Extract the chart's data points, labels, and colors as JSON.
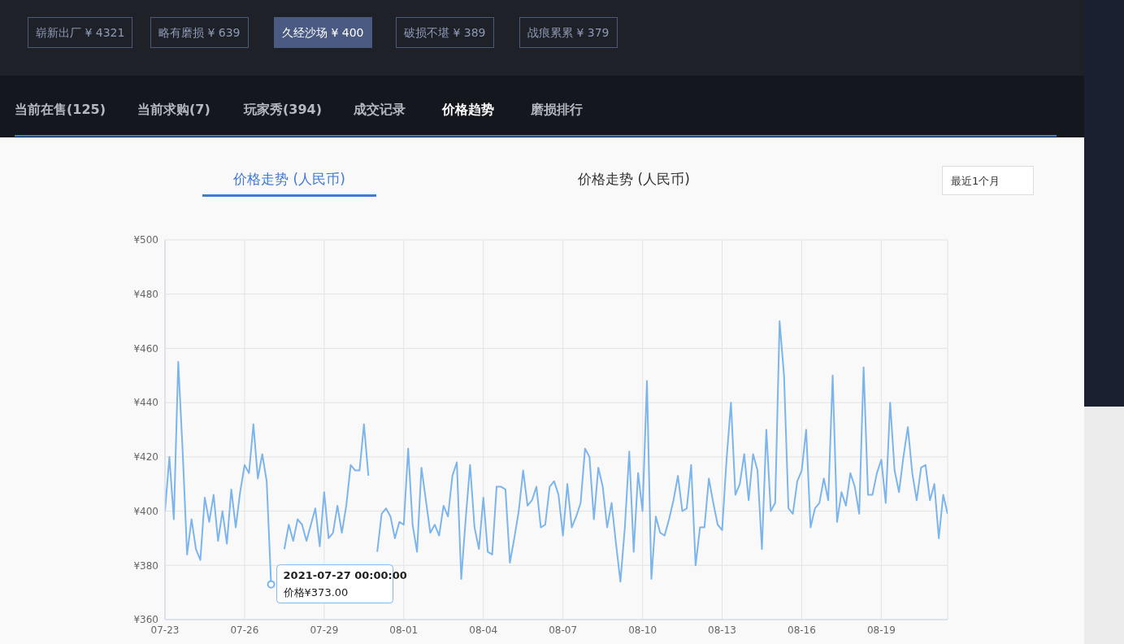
{
  "chart_data": {
    "type": "line",
    "title": "价格走势 (人民币)",
    "annotations": [
      "崭新出厂 ¥ 4321",
      "略有磨损 ¥ 639",
      "久经沙场 ¥ 400",
      "破损不堪 ¥ 389",
      "战痕累累 ¥ 379",
      "当前在售(125)",
      "当前求购(7)",
      "玩家秀(394)",
      "成交记录",
      "价格趋势",
      "磨损排行",
      "价格走势 (人民币)",
      "最近1个月",
      {
        "text": "2021-07-27 00:00:00",
        "x": "2021-07-27T00:00",
        "y": 373
      },
      {
        "text": "价格¥373.00",
        "x": "2021-07-27T00:00",
        "y": 373
      }
    ],
    "x": [
      "2021-07-23T00:00",
      "2021-07-23T04:00",
      "2021-07-23T08:00",
      "2021-07-23T12:00",
      "2021-07-23T16:00",
      "2021-07-23T20:00",
      "2021-07-24T00:00",
      "2021-07-24T04:00",
      "2021-07-24T08:00",
      "2021-07-24T12:00",
      "2021-07-24T16:00",
      "2021-07-24T20:00",
      "2021-07-25T00:00",
      "2021-07-25T04:00",
      "2021-07-25T08:00",
      "2021-07-25T12:00",
      "2021-07-25T16:00",
      "2021-07-25T20:00",
      "2021-07-26T00:00",
      "2021-07-26T04:00",
      "2021-07-26T08:00",
      "2021-07-26T12:00",
      "2021-07-26T16:00",
      "2021-07-26T20:00",
      "2021-07-27T00:00",
      "2021-07-27T04:00",
      "2021-07-27T08:00",
      "2021-07-27T12:00",
      "2021-07-27T16:00",
      "2021-07-27T20:00",
      "2021-07-28T00:00",
      "2021-07-28T04:00",
      "2021-07-28T08:00",
      "2021-07-28T12:00",
      "2021-07-28T16:00",
      "2021-07-28T20:00",
      "2021-07-29T00:00",
      "2021-07-29T04:00",
      "2021-07-29T08:00",
      "2021-07-29T12:00",
      "2021-07-29T16:00",
      "2021-07-29T20:00",
      "2021-07-30T00:00",
      "2021-07-30T04:00",
      "2021-07-30T08:00",
      "2021-07-30T12:00",
      "2021-07-30T16:00",
      "2021-07-30T20:00",
      "2021-07-31T00:00",
      "2021-07-31T04:00",
      "2021-07-31T08:00",
      "2021-07-31T12:00",
      "2021-07-31T16:00",
      "2021-07-31T20:00",
      "2021-08-01T00:00",
      "2021-08-01T04:00",
      "2021-08-01T08:00",
      "2021-08-01T12:00",
      "2021-08-01T16:00",
      "2021-08-01T20:00",
      "2021-08-02T00:00",
      "2021-08-02T04:00",
      "2021-08-02T08:00",
      "2021-08-02T12:00",
      "2021-08-02T16:00",
      "2021-08-02T20:00",
      "2021-08-03T00:00",
      "2021-08-03T04:00",
      "2021-08-03T08:00",
      "2021-08-03T12:00",
      "2021-08-03T16:00",
      "2021-08-03T20:00",
      "2021-08-04T00:00",
      "2021-08-04T04:00",
      "2021-08-04T08:00",
      "2021-08-04T12:00",
      "2021-08-04T16:00",
      "2021-08-04T20:00",
      "2021-08-05T00:00",
      "2021-08-05T04:00",
      "2021-08-05T08:00",
      "2021-08-05T12:00",
      "2021-08-05T16:00",
      "2021-08-05T20:00",
      "2021-08-06T00:00",
      "2021-08-06T04:00",
      "2021-08-06T08:00",
      "2021-08-06T12:00",
      "2021-08-06T16:00",
      "2021-08-06T20:00",
      "2021-08-07T00:00",
      "2021-08-07T04:00",
      "2021-08-07T08:00",
      "2021-08-07T12:00",
      "2021-08-07T16:00",
      "2021-08-07T20:00",
      "2021-08-08T00:00",
      "2021-08-08T04:00",
      "2021-08-08T08:00",
      "2021-08-08T12:00",
      "2021-08-08T16:00",
      "2021-08-08T20:00",
      "2021-08-09T00:00",
      "2021-08-09T04:00",
      "2021-08-09T08:00",
      "2021-08-09T12:00",
      "2021-08-09T16:00",
      "2021-08-09T20:00",
      "2021-08-10T00:00",
      "2021-08-10T04:00",
      "2021-08-10T08:00",
      "2021-08-10T12:00",
      "2021-08-10T16:00",
      "2021-08-10T20:00",
      "2021-08-11T00:00",
      "2021-08-11T04:00",
      "2021-08-11T08:00",
      "2021-08-11T12:00",
      "2021-08-11T16:00",
      "2021-08-11T20:00",
      "2021-08-12T00:00",
      "2021-08-12T04:00",
      "2021-08-12T08:00",
      "2021-08-12T12:00",
      "2021-08-12T16:00",
      "2021-08-12T20:00",
      "2021-08-13T00:00",
      "2021-08-13T04:00",
      "2021-08-13T08:00",
      "2021-08-13T12:00",
      "2021-08-13T16:00",
      "2021-08-13T20:00",
      "2021-08-14T00:00",
      "2021-08-14T04:00",
      "2021-08-14T08:00",
      "2021-08-14T12:00",
      "2021-08-14T16:00",
      "2021-08-14T20:00",
      "2021-08-15T00:00",
      "2021-08-15T04:00",
      "2021-08-15T08:00",
      "2021-08-15T12:00",
      "2021-08-15T16:00",
      "2021-08-15T20:00",
      "2021-08-16T00:00",
      "2021-08-16T04:00",
      "2021-08-16T08:00",
      "2021-08-16T12:00",
      "2021-08-16T16:00",
      "2021-08-16T20:00",
      "2021-08-17T00:00",
      "2021-08-17T04:00",
      "2021-08-17T08:00",
      "2021-08-17T12:00",
      "2021-08-17T16:00",
      "2021-08-17T20:00",
      "2021-08-18T00:00",
      "2021-08-18T04:00",
      "2021-08-18T08:00",
      "2021-08-18T12:00",
      "2021-08-18T16:00",
      "2021-08-18T20:00",
      "2021-08-19T00:00",
      "2021-08-19T04:00",
      "2021-08-19T08:00",
      "2021-08-19T12:00",
      "2021-08-19T16:00",
      "2021-08-19T20:00",
      "2021-08-20T00:00",
      "2021-08-20T04:00",
      "2021-08-20T08:00",
      "2021-08-20T12:00",
      "2021-08-20T16:00",
      "2021-08-20T20:00",
      "2021-08-21T00:00",
      "2021-08-21T04:00",
      "2021-08-21T08:00",
      "2021-08-21T12:00"
    ],
    "values": [
      400,
      420,
      397,
      455,
      422,
      384,
      397,
      386,
      382,
      405,
      396,
      406,
      389,
      400,
      388,
      408,
      394,
      407,
      417,
      414,
      432,
      412,
      421,
      411,
      373,
      null,
      null,
      386,
      395,
      389,
      397,
      395,
      389,
      395,
      401,
      387,
      407,
      390,
      392,
      402,
      392,
      402,
      417,
      415,
      415,
      432,
      413,
      null,
      385,
      399,
      401,
      398,
      390,
      396,
      395,
      423,
      395,
      385,
      416,
      404,
      392,
      395,
      391,
      402,
      398,
      413,
      418,
      375,
      397,
      417,
      394,
      386,
      405,
      385,
      384,
      409,
      409,
      408,
      381,
      390,
      400,
      415,
      402,
      404,
      409,
      394,
      395,
      409,
      411,
      406,
      391,
      410,
      394,
      398,
      403,
      423,
      420,
      397,
      416,
      409,
      394,
      403,
      388,
      374,
      394,
      422,
      385,
      414,
      400,
      448,
      375,
      398,
      392,
      391,
      397,
      404,
      413,
      400,
      401,
      417,
      380,
      394,
      394,
      412,
      403,
      395,
      393,
      419,
      440,
      406,
      410,
      421,
      404,
      421,
      415,
      386,
      430,
      400,
      403,
      470,
      450,
      401,
      399,
      411,
      415,
      430,
      394,
      401,
      403,
      412,
      404,
      450,
      396,
      407,
      402,
      414,
      409,
      399,
      453,
      406,
      406,
      414,
      419,
      403,
      440,
      415,
      407,
      420,
      431,
      414,
      404,
      416,
      417,
      404,
      410,
      390,
      406,
      399
    ],
    "color": "#7cb5ec",
    "marker": "none",
    "line_style": "solid",
    "grid": true,
    "xlim": [
      "2021-07-23T00:00",
      "2021-08-21T12:00"
    ],
    "xticks": [
      {
        "value": "2021-07-23T00:00",
        "label": "07-23"
      },
      {
        "value": "2021-07-26T00:00",
        "label": "07-26"
      },
      {
        "value": "2021-07-29T00:00",
        "label": "07-29"
      },
      {
        "value": "2021-08-01T00:00",
        "label": "08-01"
      },
      {
        "value": "2021-08-04T00:00",
        "label": "08-04"
      },
      {
        "value": "2021-08-07T00:00",
        "label": "08-07"
      },
      {
        "value": "2021-08-10T00:00",
        "label": "08-10"
      },
      {
        "value": "2021-08-13T00:00",
        "label": "08-13"
      },
      {
        "value": "2021-08-16T00:00",
        "label": "08-16"
      },
      {
        "value": "2021-08-19T00:00",
        "label": "08-19"
      }
    ],
    "ylim": [
      360,
      500
    ],
    "yticks": [
      {
        "value": 360,
        "label": "¥360"
      },
      {
        "value": 380,
        "label": "¥380"
      },
      {
        "value": 400,
        "label": "¥400"
      },
      {
        "value": 420,
        "label": "¥420"
      },
      {
        "value": 440,
        "label": "¥440"
      },
      {
        "value": 460,
        "label": "¥460"
      },
      {
        "value": 480,
        "label": "¥480"
      },
      {
        "value": 500,
        "label": "¥500"
      }
    ]
  }
}
